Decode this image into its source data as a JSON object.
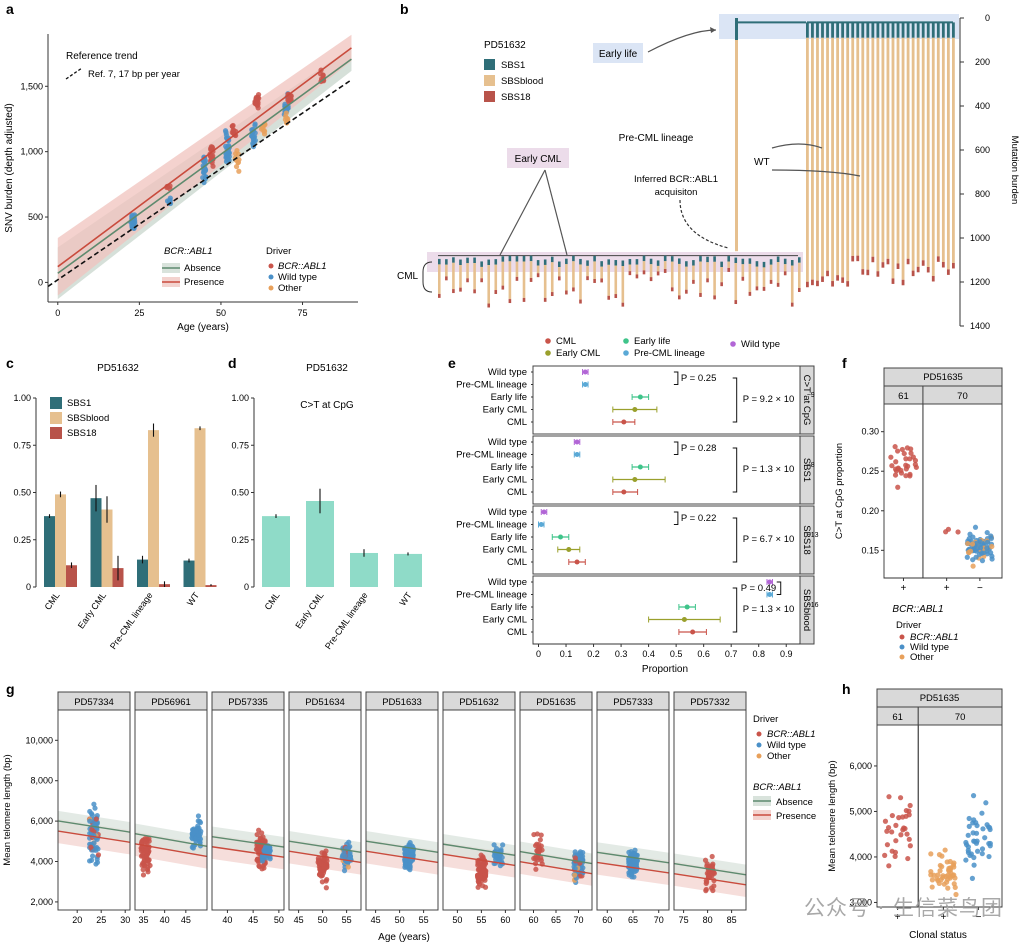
{
  "colors": {
    "cml": "#c9544a",
    "wild_type": "#4a90c8",
    "other": "#e8a05a",
    "absence": "#5e8a6e",
    "presence": "#c94b3d",
    "sbs1": "#2f6e78",
    "sbsblood": "#e6c08f",
    "sbs18": "#b8534a",
    "ctcpg": "#8fdbc8",
    "early_cml": "#9aa02c",
    "early_life": "#3fc48a",
    "pre_cml": "#5aa9d6",
    "wt_e": "#b266d6",
    "strip": "#d9d9d9",
    "ref_line": "#111111"
  },
  "panels": {
    "a": {
      "letter": "a",
      "ref_trend": "Reference trend",
      "ref_label": "Ref. 7, 17 bp per year",
      "driver_title": "Driver",
      "driver_items": [
        "BCR::ABL1",
        "Wild type",
        "Other"
      ],
      "bcr_title": "BCR::ABL1",
      "bcr_items": [
        "Absence",
        "Presence"
      ]
    },
    "b": {
      "letter": "b",
      "sample": "PD51632",
      "early_life": "Early life",
      "early_cml": "Early CML",
      "pre_cml": "Pre-CML lineage",
      "wt": "WT",
      "inferred_1": "Inferred BCR::ABL1",
      "inferred_2": "acquisiton",
      "cml": "CML",
      "ylabel": "Mutation burden",
      "legend": [
        "SBS1",
        "SBSblood",
        "SBS18"
      ]
    },
    "c": {
      "letter": "c",
      "sample": "PD51632"
    },
    "d": {
      "letter": "d",
      "sample": "PD51632",
      "title": "C>T at CpG"
    },
    "e": {
      "letter": "e",
      "xlabel": "Proportion",
      "legend": [
        "CML",
        "Early CML",
        "Early life",
        "Pre-CML lineage",
        "Wild type"
      ],
      "row_labels": [
        "Wild type",
        "Pre-CML lineage",
        "Early life",
        "Early CML",
        "CML"
      ],
      "facets": [
        "C>T at CpG",
        "SBS1",
        "SBS18",
        "SBSblood"
      ],
      "p_small": [
        "P = 0.25",
        "P = 0.28",
        "P = 0.22",
        "P = 0.49"
      ],
      "p_big": [
        "P = 9.2 × 10",
        "P = 1.3 × 10",
        "P = 6.7 × 10",
        "P = 1.3 × 10"
      ],
      "p_exp": [
        "−9",
        "−8",
        "−13",
        "−16"
      ]
    },
    "f": {
      "letter": "f",
      "sample": "PD51635",
      "ylabel": "C>T at CpG proportion",
      "xlabel": "BCR::ABL1",
      "driver_title": "Driver",
      "driver_items": [
        "BCR::ABL1",
        "Wild type",
        "Other"
      ]
    },
    "g": {
      "letter": "g",
      "xlabel": "Age (years)",
      "ylabel": "Mean telomere length (bp)",
      "driver_title": "Driver",
      "driver_items": [
        "BCR::ABL1",
        "Wild type",
        "Other"
      ],
      "bcr_title": "BCR::ABL1",
      "bcr_items": [
        "Absence",
        "Presence"
      ]
    },
    "h": {
      "letter": "h",
      "sample": "PD51635",
      "ylabel": "Mean telomere length (bp)",
      "xlabel": "Clonal status"
    }
  },
  "watermark": "公众号 · 生信菜鸟团",
  "chart_data": [
    {
      "id": "a",
      "type": "scatter",
      "xlabel": "Age (years)",
      "ylabel": "SNV burden (depth adjusted)",
      "xlim": [
        -3,
        92
      ],
      "ylim": [
        -150,
        1900
      ],
      "xticks": [
        0,
        25,
        50,
        75
      ],
      "yticks": [
        0,
        500,
        1000,
        1500
      ],
      "ytick_labels": [
        "0",
        "500",
        "1,000",
        "1,500"
      ],
      "clusters": [
        {
          "age": 23,
          "center": 470,
          "spread": 60,
          "n": 26,
          "driver": "wild_type"
        },
        {
          "age": 34,
          "center": 630,
          "spread": 25,
          "n": 8,
          "driver": "wild_type"
        },
        {
          "age": 34,
          "center": 730,
          "spread": 20,
          "n": 6,
          "driver": "bcr"
        },
        {
          "age": 45,
          "center": 880,
          "spread": 80,
          "n": 24,
          "driver": "wild_type"
        },
        {
          "age": 47,
          "center": 970,
          "spread": 60,
          "n": 20,
          "driver": "bcr"
        },
        {
          "age": 52,
          "center": 1020,
          "spread": 110,
          "n": 30,
          "driver": "wild_type"
        },
        {
          "age": 54,
          "center": 1150,
          "spread": 50,
          "n": 12,
          "driver": "bcr"
        },
        {
          "age": 55,
          "center": 930,
          "spread": 60,
          "n": 10,
          "driver": "other"
        },
        {
          "age": 60,
          "center": 1130,
          "spread": 80,
          "n": 20,
          "driver": "wild_type"
        },
        {
          "age": 61,
          "center": 1390,
          "spread": 40,
          "n": 18,
          "driver": "bcr"
        },
        {
          "age": 63,
          "center": 1190,
          "spread": 50,
          "n": 10,
          "driver": "other"
        },
        {
          "age": 70,
          "center": 1340,
          "spread": 60,
          "n": 16,
          "driver": "wild_type"
        },
        {
          "age": 70,
          "center": 1250,
          "spread": 40,
          "n": 8,
          "driver": "other"
        },
        {
          "age": 71,
          "center": 1420,
          "spread": 40,
          "n": 12,
          "driver": "bcr"
        },
        {
          "age": 81,
          "center": 1560,
          "spread": 40,
          "n": 10,
          "driver": "bcr"
        }
      ],
      "fits": {
        "reference": {
          "intercept": 20,
          "slope": 17
        },
        "absence": {
          "intercept": 70,
          "slope": 18.2,
          "ci": 90
        },
        "presence": {
          "intercept": 120,
          "slope": 18.6,
          "ci": 100
        }
      }
    },
    {
      "id": "b",
      "type": "tree",
      "ylabel": "Mutation burden",
      "yticks": [
        0,
        200,
        400,
        600,
        800,
        1000,
        1200,
        1400
      ],
      "ylim": [
        0,
        1400
      ],
      "wt_leaves": 30,
      "cml_leaves": 52,
      "pre_cml_burden": 1060
    },
    {
      "id": "c",
      "type": "bar",
      "categories": [
        "CML",
        "Early CML",
        "Pre-CML lineage",
        "WT"
      ],
      "ylim": [
        0,
        1
      ],
      "yticks": [
        0,
        0.25,
        0.5,
        0.75,
        1.0
      ],
      "ytick_labels": [
        "0",
        "0.25",
        "0.50",
        "0.75",
        "1.00"
      ],
      "series": [
        {
          "name": "SBS1",
          "values": [
            0.375,
            0.47,
            0.145,
            0.14
          ],
          "err": [
            0.01,
            0.07,
            0.02,
            0.01
          ]
        },
        {
          "name": "SBSblood",
          "values": [
            0.49,
            0.41,
            0.83,
            0.84
          ],
          "err": [
            0.015,
            0.07,
            0.035,
            0.01
          ]
        },
        {
          "name": "SBS18",
          "values": [
            0.115,
            0.1,
            0.015,
            0.01
          ],
          "err": [
            0.015,
            0.065,
            0.015,
            0.005
          ]
        }
      ]
    },
    {
      "id": "d",
      "type": "bar",
      "categories": [
        "CML",
        "Early CML",
        "Pre-CML lineage",
        "WT"
      ],
      "values": [
        0.375,
        0.455,
        0.18,
        0.175
      ],
      "err": [
        0.01,
        0.065,
        0.02,
        0.008
      ],
      "ylim": [
        0,
        1
      ],
      "yticks": [
        0,
        0.25,
        0.5,
        0.75,
        1.0
      ],
      "ytick_labels": [
        "0",
        "0.25",
        "0.50",
        "0.75",
        "1.00"
      ]
    },
    {
      "id": "e",
      "type": "forest",
      "xlim": [
        -0.02,
        0.95
      ],
      "xticks": [
        0,
        0.1,
        0.2,
        0.3,
        0.4,
        0.5,
        0.6,
        0.7,
        0.8,
        0.9
      ],
      "xtick_labels": [
        "0",
        "0.1",
        "0.2",
        "0.3",
        "0.4",
        "0.5",
        "0.6",
        "0.7",
        "0.8",
        "0.9"
      ],
      "facets": [
        {
          "name": "C>T at CpG",
          "est": [
            0.17,
            0.17,
            0.37,
            0.35,
            0.31
          ],
          "lo": [
            0.16,
            0.16,
            0.34,
            0.27,
            0.27
          ],
          "hi": [
            0.18,
            0.18,
            0.4,
            0.43,
            0.35
          ]
        },
        {
          "name": "SBS1",
          "est": [
            0.14,
            0.14,
            0.37,
            0.35,
            0.31
          ],
          "lo": [
            0.13,
            0.13,
            0.34,
            0.27,
            0.27
          ],
          "hi": [
            0.15,
            0.15,
            0.4,
            0.46,
            0.36
          ]
        },
        {
          "name": "SBS18",
          "est": [
            0.02,
            0.01,
            0.08,
            0.11,
            0.14
          ],
          "lo": [
            0.01,
            0.0,
            0.05,
            0.07,
            0.11
          ],
          "hi": [
            0.03,
            0.02,
            0.11,
            0.15,
            0.17
          ]
        },
        {
          "name": "SBSblood",
          "est": [
            0.84,
            0.84,
            0.54,
            0.53,
            0.56
          ],
          "lo": [
            0.83,
            0.83,
            0.51,
            0.4,
            0.51
          ],
          "hi": [
            0.85,
            0.85,
            0.57,
            0.66,
            0.61
          ]
        }
      ]
    },
    {
      "id": "f",
      "type": "strip",
      "ylabel": "C>T at CpG proportion",
      "ylim": [
        0.115,
        0.335
      ],
      "yticks": [
        0.15,
        0.2,
        0.25,
        0.3
      ],
      "ytick_labels": [
        "0.15",
        "0.20",
        "0.25",
        "0.30"
      ],
      "facets": [
        "61",
        "70"
      ],
      "xticks": [
        "+",
        "+",
        "−"
      ],
      "groups": [
        {
          "facet": 0,
          "center": 0.255,
          "spread": 0.025,
          "n": 30,
          "driver": "bcr"
        },
        {
          "facet": 1,
          "center": 0.175,
          "spread": 0.015,
          "n": 3,
          "driver": "bcr"
        },
        {
          "facet": 1,
          "center": 0.155,
          "spread": 0.015,
          "n": 90,
          "driver": "mix"
        }
      ]
    },
    {
      "id": "g",
      "type": "scatter_facets",
      "ylabel": "Mean telomere length (bp)",
      "ylim": [
        1600,
        11500
      ],
      "yticks": [
        2000,
        4000,
        6000,
        8000,
        10000
      ],
      "ytick_labels": [
        "2,000",
        "4,000",
        "6,000",
        "8,000",
        "10,000"
      ],
      "facets": [
        {
          "name": "PD57334",
          "xlim": [
            16,
            31
          ],
          "xticks": [
            20,
            25,
            30
          ],
          "groups": [
            {
              "age": 23.5,
              "center": 5400,
              "spread": 1100,
              "n": 70,
              "driver": "mix"
            }
          ]
        },
        {
          "name": "PD56961",
          "xlim": [
            33,
            50
          ],
          "xticks": [
            35,
            40,
            45
          ],
          "groups": [
            {
              "age": 35.5,
              "center": 4400,
              "spread": 800,
              "n": 60,
              "driver": "bcr"
            },
            {
              "age": 47.5,
              "center": 5300,
              "spread": 550,
              "n": 60,
              "driver": "wt"
            }
          ]
        },
        {
          "name": "PD57335",
          "xlim": [
            37,
            51
          ],
          "xticks": [
            40,
            45,
            50
          ],
          "groups": [
            {
              "age": 46.5,
              "center": 4500,
              "spread": 750,
              "n": 70,
              "driver": "bcr"
            },
            {
              "age": 47.5,
              "center": 4500,
              "spread": 500,
              "n": 30,
              "driver": "wt"
            }
          ]
        },
        {
          "name": "PD51634",
          "xlim": [
            43,
            58
          ],
          "xticks": [
            45,
            50,
            55
          ],
          "groups": [
            {
              "age": 50,
              "center": 3800,
              "spread": 700,
              "n": 70,
              "driver": "bcr"
            },
            {
              "age": 55,
              "center": 4300,
              "spread": 550,
              "n": 50,
              "driver": "mix"
            }
          ]
        },
        {
          "name": "PD51633",
          "xlim": [
            43,
            58
          ],
          "xticks": [
            45,
            50,
            55
          ],
          "groups": [
            {
              "age": 52,
              "center": 4200,
              "spread": 600,
              "n": 100,
              "driver": "wt"
            }
          ]
        },
        {
          "name": "PD51632",
          "xlim": [
            47,
            62
          ],
          "xticks": [
            50,
            55,
            60
          ],
          "groups": [
            {
              "age": 55,
              "center": 3500,
              "spread": 700,
              "n": 70,
              "driver": "bcr"
            },
            {
              "age": 58.5,
              "center": 4200,
              "spread": 500,
              "n": 30,
              "driver": "wt"
            }
          ]
        },
        {
          "name": "PD51635",
          "xlim": [
            57,
            73
          ],
          "xticks": [
            60,
            65,
            70
          ],
          "groups": [
            {
              "age": 61,
              "center": 4600,
              "spread": 800,
              "n": 30,
              "driver": "bcr"
            },
            {
              "age": 70,
              "center": 3900,
              "spread": 650,
              "n": 90,
              "driver": "mix"
            }
          ]
        },
        {
          "name": "PD57333",
          "xlim": [
            58,
            72
          ],
          "xticks": [
            60,
            65,
            70
          ],
          "groups": [
            {
              "age": 65,
              "center": 3900,
              "spread": 600,
              "n": 80,
              "driver": "wt"
            }
          ]
        },
        {
          "name": "PD57332",
          "xlim": [
            73,
            88
          ],
          "xticks": [
            75,
            80,
            85
          ],
          "groups": [
            {
              "age": 80.5,
              "center": 3400,
              "spread": 700,
              "n": 40,
              "driver": "bcr"
            }
          ]
        }
      ],
      "fits": {
        "absence": {
          "intercept": 6600,
          "slope": -37,
          "ci": 500
        },
        "presence": {
          "intercept": 6100,
          "slope": -37,
          "ci": 600
        }
      }
    },
    {
      "id": "h",
      "type": "strip",
      "ylabel": "Mean telomere length (bp)",
      "ylim": [
        2900,
        6900
      ],
      "yticks": [
        3000,
        4000,
        5000,
        6000
      ],
      "ytick_labels": [
        "3,000",
        "4,000",
        "5,000",
        "6,000"
      ],
      "facets": [
        "61",
        "70"
      ],
      "xticks": [
        "+",
        "+",
        "−"
      ],
      "groups": [
        {
          "facet": 0,
          "center": 4600,
          "spread": 800,
          "n": 30,
          "driver": "bcr"
        },
        {
          "facet": 1,
          "center": 3700,
          "spread": 500,
          "n": 45,
          "driver": "other"
        },
        {
          "facet": 1,
          "center": 4300,
          "spread": 700,
          "n": 40,
          "driver": "wt"
        }
      ]
    }
  ]
}
